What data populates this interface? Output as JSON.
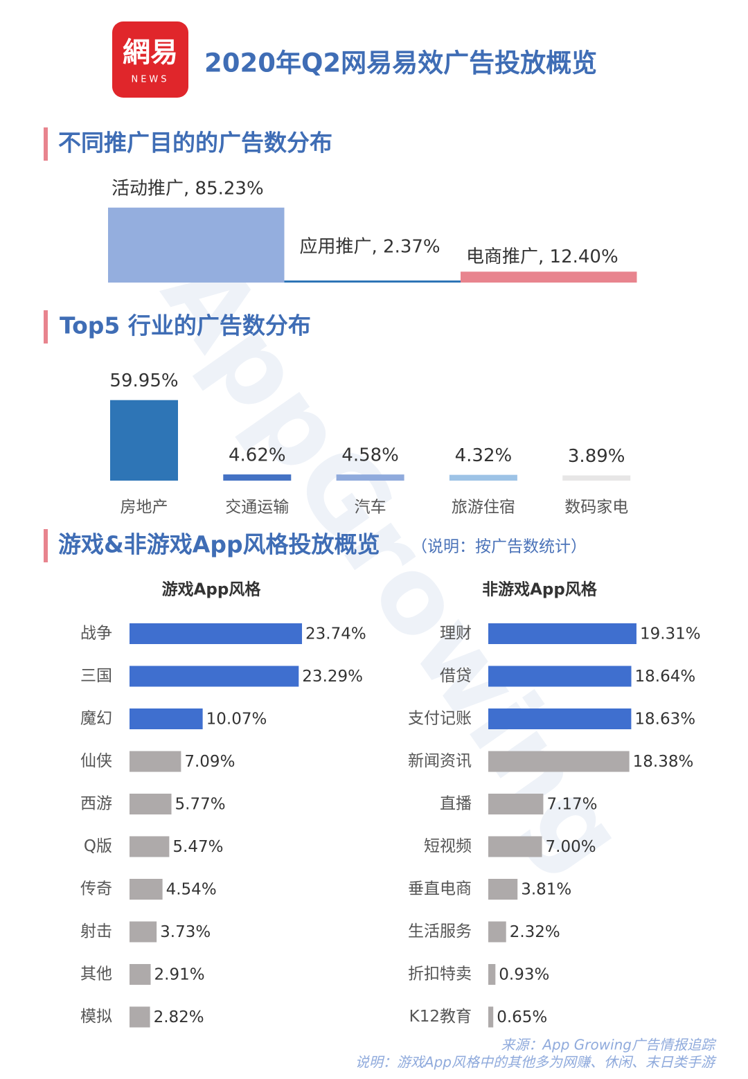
{
  "header": {
    "logo": "網易",
    "logo_sub": "NEWS",
    "title": "2020年Q2网易易效广告投放概览"
  },
  "watermark": "AppGrowing",
  "chart_data": [
    {
      "type": "block",
      "title": "不同推广目的的广告数分布",
      "values": [
        85.23,
        2.37,
        12.4
      ],
      "value_labels": [
        "活动推广, 85.23%",
        "应用推广, 2.37%",
        "电商推广, 12.40%"
      ],
      "colors": [
        "#94aede",
        "#2e75b6",
        "#e8848e"
      ]
    },
    {
      "type": "bar",
      "title": "Top5 行业的广告数分布",
      "categories": [
        "房地产",
        "交通运输",
        "汽车",
        "旅游住宿",
        "数码家电"
      ],
      "values": [
        59.95,
        4.62,
        4.58,
        4.32,
        3.89
      ],
      "value_labels": [
        "59.95%",
        "4.62%",
        "4.58%",
        "4.32%",
        "3.89%"
      ],
      "colors": [
        "#2e75b6",
        "#4472c4",
        "#8faadc",
        "#9dc3e6",
        "#e7e6e6"
      ]
    },
    {
      "type": "hbar",
      "section_title": "游戏&非游戏App风格投放概览",
      "note": "（说明：按广告数统计）",
      "title": "游戏App风格",
      "categories": [
        "战争",
        "三国",
        "魔幻",
        "仙侠",
        "西游",
        "Q版",
        "传奇",
        "射击",
        "其他",
        "模拟"
      ],
      "values": [
        23.74,
        23.29,
        10.07,
        7.09,
        5.77,
        5.47,
        4.54,
        3.73,
        2.91,
        2.82
      ],
      "value_labels": [
        "23.74%",
        "23.29%",
        "10.07%",
        "7.09%",
        "5.77%",
        "5.47%",
        "4.54%",
        "3.73%",
        "2.91%",
        "2.82%"
      ],
      "colors": [
        "#3f6fcf",
        "#3f6fcf",
        "#3f6fcf",
        "#aeaaaa",
        "#aeaaaa",
        "#aeaaaa",
        "#aeaaaa",
        "#aeaaaa",
        "#aeaaaa",
        "#aeaaaa"
      ]
    },
    {
      "type": "hbar",
      "title": "非游戏App风格",
      "categories": [
        "理财",
        "借贷",
        "支付记账",
        "新闻资讯",
        "直播",
        "短视频",
        "垂直电商",
        "生活服务",
        "折扣特卖",
        "K12教育"
      ],
      "values": [
        19.31,
        18.64,
        18.63,
        18.38,
        7.17,
        7.0,
        3.81,
        2.32,
        0.93,
        0.65
      ],
      "value_labels": [
        "19.31%",
        "18.64%",
        "18.63%",
        "18.38%",
        "7.17%",
        "7.00%",
        "3.81%",
        "2.32%",
        "0.93%",
        "0.65%"
      ],
      "colors": [
        "#3f6fcf",
        "#3f6fcf",
        "#3f6fcf",
        "#aeaaaa",
        "#aeaaaa",
        "#aeaaaa",
        "#aeaaaa",
        "#aeaaaa",
        "#aeaaaa",
        "#aeaaaa"
      ]
    }
  ],
  "footer": {
    "source": "来源：App Growing广告情报追踪",
    "note": "说明：游戏App风格中的其他多为网赚、休闲、末日类手游"
  }
}
